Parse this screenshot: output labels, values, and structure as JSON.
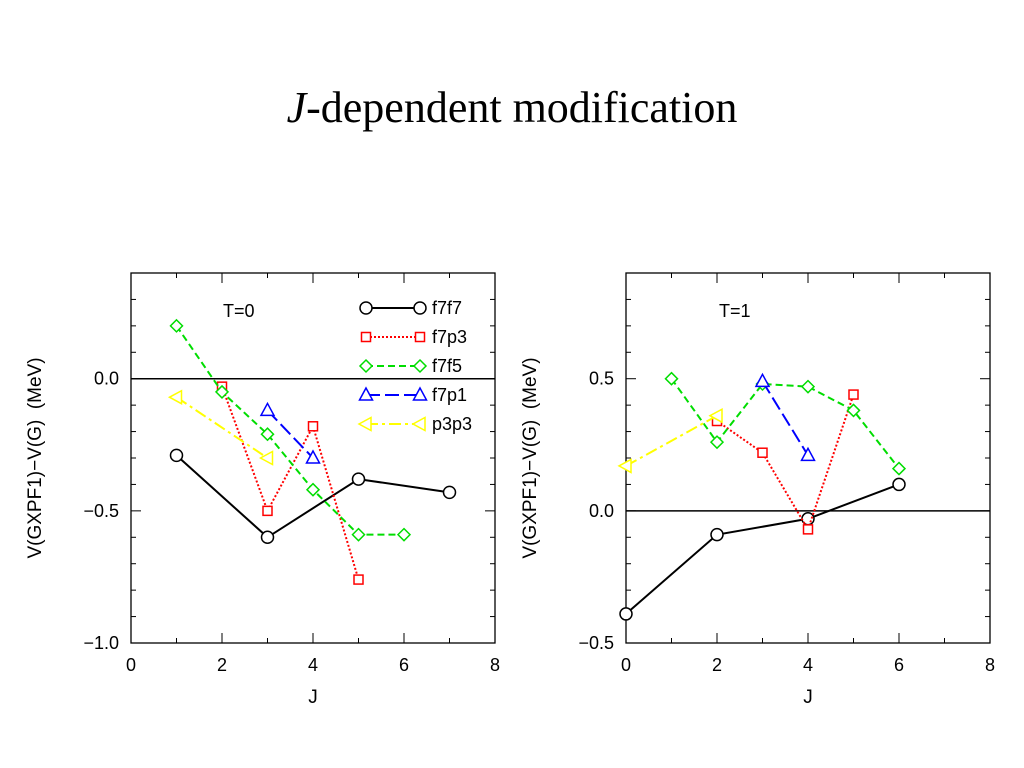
{
  "slide": {
    "title_italic": "J",
    "title_rest": "-dependent modification"
  },
  "chart_data": [
    {
      "type": "line",
      "annotation": "T=0",
      "xlabel": "J",
      "ylabel": "V(GXPF1)−V(G)  (MeV)",
      "xlim": [
        0,
        8
      ],
      "ylim": [
        -1.0,
        0.4
      ],
      "xticks": [
        0,
        2,
        4,
        6,
        8
      ],
      "xtick_labels": [
        "0",
        "2",
        "4",
        "6",
        "8"
      ],
      "yticks": [
        -1.0,
        -0.5,
        0.0
      ],
      "ytick_labels": [
        "−1.0",
        "−0.5",
        "0.0"
      ],
      "zero_line": true,
      "legend_position": "top-right",
      "series": [
        {
          "name": "f7f7",
          "color": "#000000",
          "marker": "circle",
          "dash": "",
          "x": [
            1,
            3,
            5,
            7
          ],
          "y": [
            -0.29,
            -0.6,
            -0.38,
            -0.43
          ]
        },
        {
          "name": "f7p3",
          "color": "#ff0000",
          "marker": "square",
          "dash": "2,2",
          "x": [
            2,
            3,
            4,
            5
          ],
          "y": [
            -0.03,
            -0.5,
            -0.18,
            -0.76
          ]
        },
        {
          "name": "f7f5",
          "color": "#00dd00",
          "marker": "diamond",
          "dash": "7,4",
          "x": [
            1,
            2,
            3,
            4,
            5,
            6
          ],
          "y": [
            0.2,
            -0.05,
            -0.21,
            -0.42,
            -0.59,
            -0.59
          ]
        },
        {
          "name": "f7p1",
          "color": "#0000ff",
          "marker": "triangle-up",
          "dash": "14,5",
          "x": [
            3,
            4
          ],
          "y": [
            -0.12,
            -0.3
          ]
        },
        {
          "name": "p3p3",
          "color": "#ffff00",
          "marker": "triangle-left",
          "dash": "12,4,3,4",
          "x": [
            1,
            3
          ],
          "y": [
            -0.07,
            -0.3
          ]
        }
      ]
    },
    {
      "type": "line",
      "annotation": "T=1",
      "xlabel": "J",
      "ylabel": "V(GXPF1)−V(G)  (MeV)",
      "xlim": [
        0,
        8
      ],
      "ylim": [
        -0.5,
        0.9
      ],
      "xticks": [
        0,
        2,
        4,
        6,
        8
      ],
      "xtick_labels": [
        "0",
        "2",
        "4",
        "6",
        "8"
      ],
      "yticks": [
        -0.5,
        0.0,
        0.5
      ],
      "ytick_labels": [
        "−0.5",
        "0.0",
        "0.5"
      ],
      "zero_line": true,
      "series": [
        {
          "name": "f7f7",
          "color": "#000000",
          "marker": "circle",
          "dash": "",
          "x": [
            0,
            2,
            4,
            6
          ],
          "y": [
            -0.39,
            -0.09,
            -0.03,
            0.1
          ]
        },
        {
          "name": "f7p3",
          "color": "#ff0000",
          "marker": "square",
          "dash": "2,2",
          "x": [
            2,
            3,
            4,
            5
          ],
          "y": [
            0.34,
            0.22,
            -0.07,
            0.44
          ]
        },
        {
          "name": "f7f5",
          "color": "#00dd00",
          "marker": "diamond",
          "dash": "7,4",
          "x": [
            1,
            2,
            3,
            4,
            5,
            6
          ],
          "y": [
            0.5,
            0.26,
            0.48,
            0.47,
            0.38,
            0.16
          ]
        },
        {
          "name": "f7p1",
          "color": "#0000ff",
          "marker": "triangle-up",
          "dash": "14,5",
          "x": [
            3,
            4
          ],
          "y": [
            0.49,
            0.21
          ]
        },
        {
          "name": "p3p3",
          "color": "#ffff00",
          "marker": "triangle-left",
          "dash": "12,4,3,4",
          "x": [
            0,
            2
          ],
          "y": [
            0.17,
            0.36
          ]
        }
      ]
    }
  ]
}
